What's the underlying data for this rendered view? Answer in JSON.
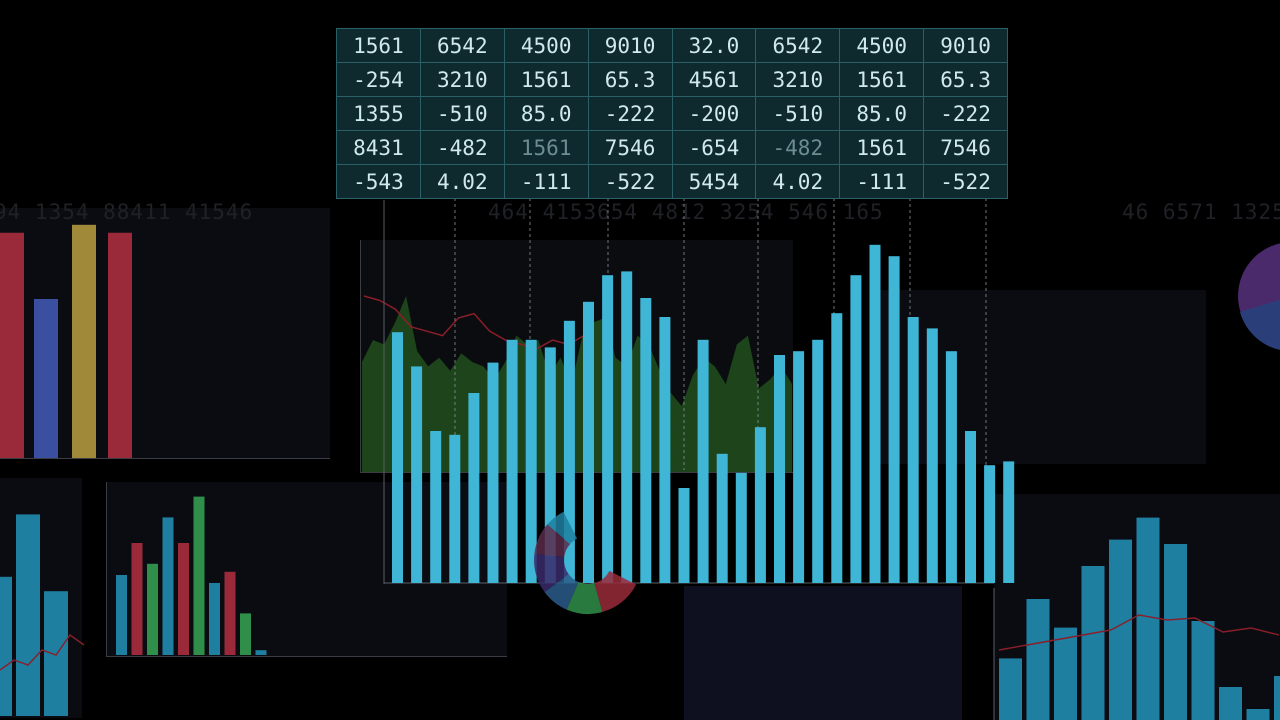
{
  "table": {
    "rows": [
      [
        "1561",
        "6542",
        "4500",
        "9010",
        "32.0",
        "6542",
        "4500",
        "9010"
      ],
      [
        "-254",
        "3210",
        "1561",
        "65.3",
        "4561",
        "3210",
        "1561",
        "65.3"
      ],
      [
        "1355",
        "-510",
        "85.0",
        "-222",
        "-200",
        "-510",
        "85.0",
        "-222"
      ],
      [
        "8431",
        "-482",
        "1561",
        "7546",
        "-654",
        "-482",
        "1561",
        "7546"
      ],
      [
        "-543",
        "4.02",
        "-111",
        "-522",
        "5454",
        "4.02",
        "-111",
        "-522"
      ]
    ],
    "dim_cells": [
      [
        3,
        2
      ],
      [
        3,
        5
      ]
    ]
  },
  "ghost_text": {
    "left": "94 1354 88411 41546",
    "center": "464 4153654 4812 3254 546 165",
    "right": "46 6571 1325"
  },
  "colors": {
    "main_bar": "#3fb6d6",
    "area": "#1f4a1c",
    "red": "#9a2a3a",
    "blue": "#3a4fa0",
    "gold": "#a08a3a",
    "green": "#2f8f4a",
    "teal": "#1f7fa0",
    "trend": "#8a1e2a"
  },
  "chart_data": [
    {
      "type": "bar",
      "title": "",
      "values": [
        66,
        57,
        40,
        39,
        50,
        58,
        64,
        64,
        62,
        69,
        74,
        81,
        82,
        75,
        70,
        25,
        64,
        34,
        29,
        41,
        60,
        61,
        64,
        71,
        81,
        89,
        86,
        70,
        67,
        61,
        40,
        31,
        32
      ],
      "area": [
        50,
        60,
        58,
        68,
        80,
        55,
        48,
        52,
        46,
        54,
        50,
        48,
        42,
        50,
        62,
        58,
        60,
        44,
        52,
        40,
        62,
        68,
        70,
        52,
        48,
        62,
        58,
        46,
        36,
        30,
        44,
        52,
        48,
        40,
        58,
        62,
        38,
        42,
        48,
        40
      ],
      "trend": [
        80,
        78,
        74,
        66,
        64,
        62,
        70,
        72,
        64,
        60,
        58,
        56,
        60,
        58,
        62
      ]
    },
    {
      "type": "bar",
      "values": [
        85,
        60,
        88,
        85
      ],
      "categories_colors": [
        "red",
        "blue",
        "gold",
        "red"
      ]
    },
    {
      "type": "bar",
      "values": [
        50,
        70,
        57,
        86,
        70,
        99,
        45,
        52,
        26,
        3
      ],
      "categories_colors": [
        "teal",
        "red",
        "green",
        "teal",
        "red",
        "green",
        "teal",
        "red",
        "green",
        "teal"
      ]
    },
    {
      "type": "bar",
      "values": [
        58,
        84,
        52
      ],
      "trend": [
        20,
        30,
        25,
        40,
        35,
        55,
        45
      ]
    },
    {
      "type": "bar",
      "values": [
        28,
        55,
        42,
        70,
        82,
        92,
        80,
        45,
        15,
        5,
        20
      ],
      "trend": [
        40,
        45,
        50,
        55,
        60,
        75,
        70,
        72,
        58,
        62,
        55
      ]
    },
    {
      "type": "pie",
      "values": [
        22,
        18,
        14,
        20,
        16,
        10
      ]
    }
  ]
}
